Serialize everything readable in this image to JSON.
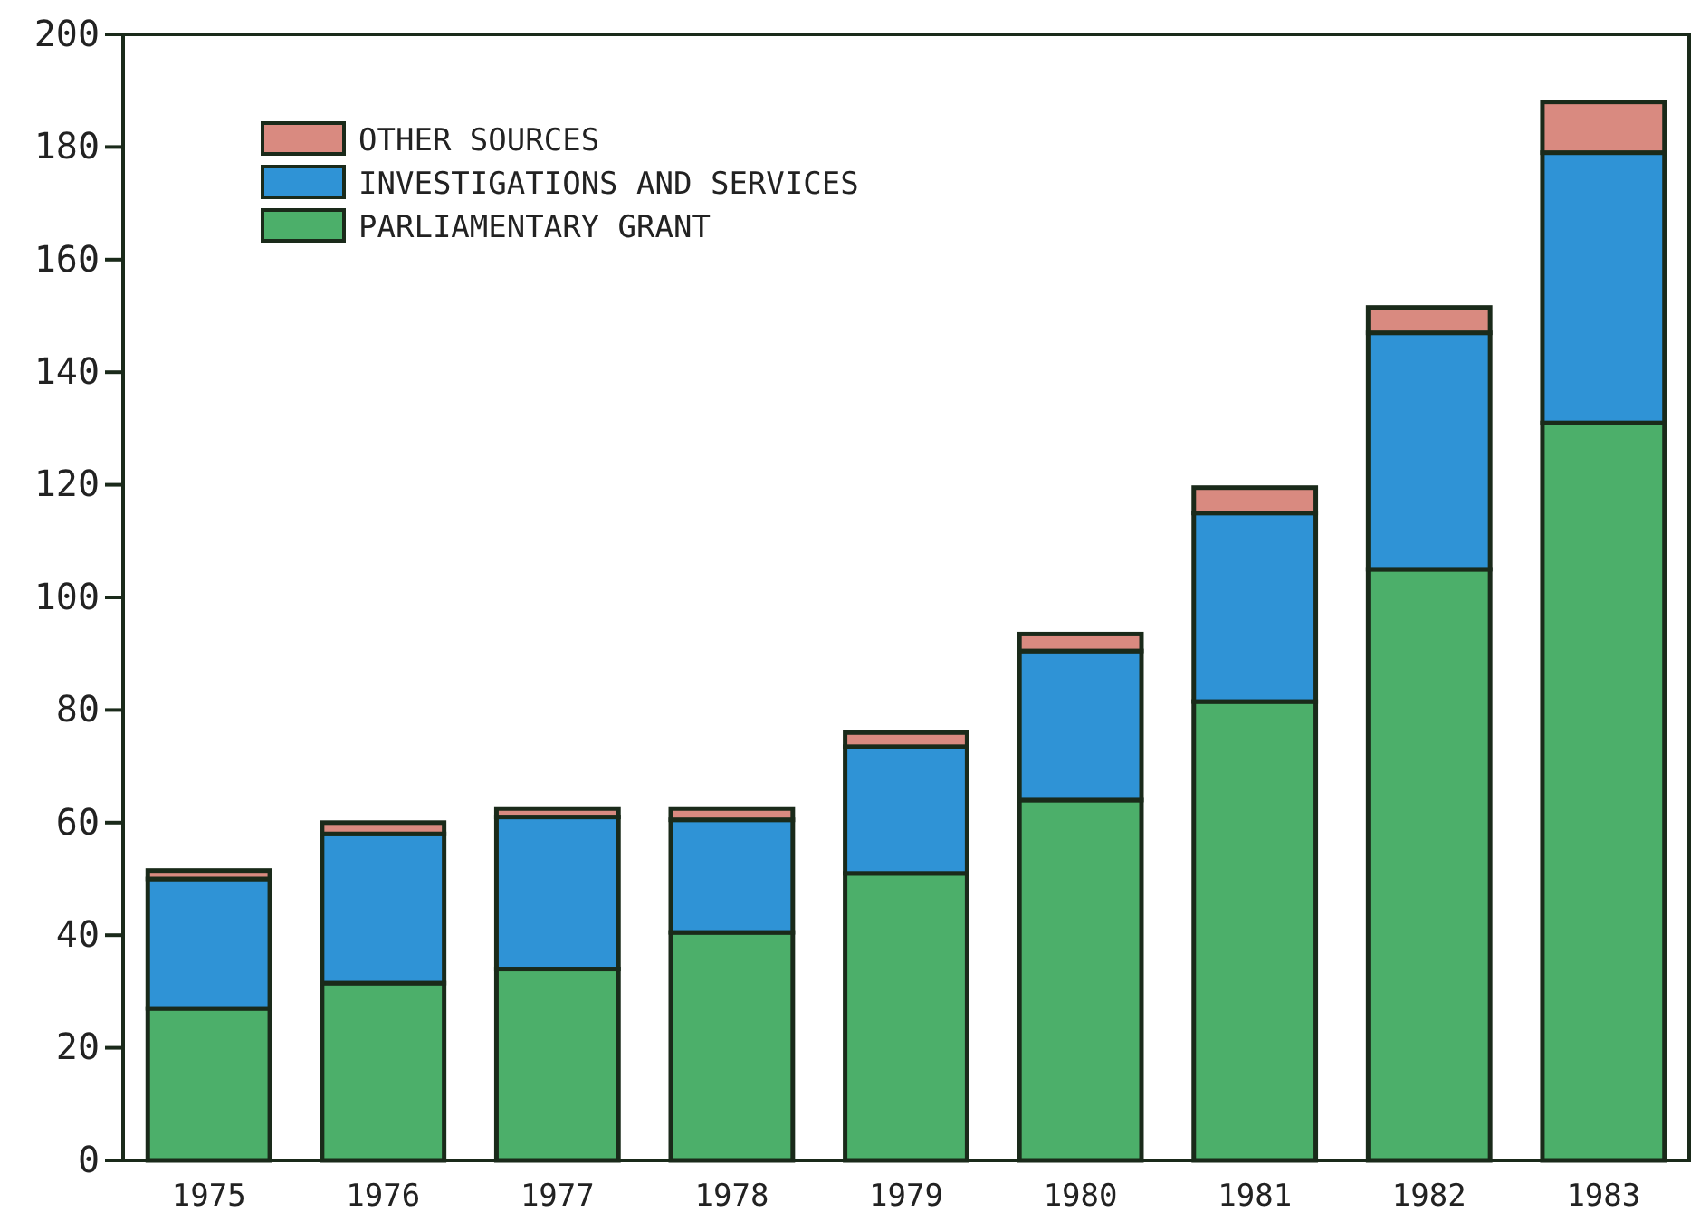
{
  "chart_data": {
    "type": "bar",
    "stacked": true,
    "categories": [
      "1975",
      "1976",
      "1977",
      "1978",
      "1979",
      "1980",
      "1981",
      "1982",
      "1983"
    ],
    "series": [
      {
        "name": "PARLIAMENTARY GRANT",
        "color": "#4caf6a",
        "values": [
          27,
          31.5,
          34,
          40.5,
          51,
          64,
          81.5,
          105,
          131
        ]
      },
      {
        "name": "INVESTIGATIONS AND SERVICES",
        "color": "#2f93d6",
        "values": [
          23,
          26.5,
          27,
          20,
          22.5,
          26.5,
          33.5,
          42,
          48
        ]
      },
      {
        "name": "OTHER SOURCES",
        "color": "#d98a80",
        "values": [
          1.5,
          2,
          1.5,
          2,
          2.5,
          3,
          4.5,
          4.5,
          9
        ]
      }
    ],
    "ylim": [
      0,
      200
    ],
    "yticks": [
      0,
      20,
      40,
      60,
      80,
      100,
      120,
      140,
      160,
      180,
      200
    ],
    "grid": false,
    "legend": "top left"
  }
}
